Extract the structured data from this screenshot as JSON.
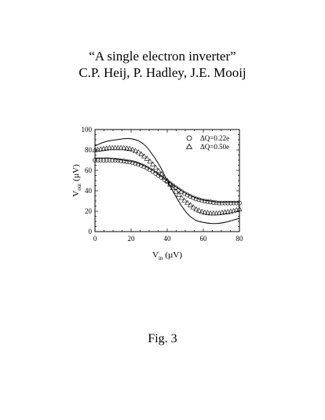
{
  "document": {
    "title": "“A single electron inverter”",
    "authors": "C.P. Heij, P. Hadley, J.E. Mooij",
    "figure_label": "Fig. 3"
  },
  "chart_data": {
    "type": "scatter",
    "xlabel_main": "V",
    "xlabel_sub": "in",
    "xlabel_unit": "(µV)",
    "ylabel_main": "V",
    "ylabel_sub": "out",
    "ylabel_unit": "(µV)",
    "xlim": [
      0,
      80
    ],
    "ylim": [
      0,
      100
    ],
    "xticks": [
      "0",
      "20",
      "40",
      "60",
      "80"
    ],
    "yticks": [
      "0",
      "20",
      "40",
      "60",
      "80",
      "100"
    ],
    "grid": false,
    "legend_position": "top-right",
    "series": [
      {
        "name": "ΔQ=0.22e",
        "marker": "circle",
        "x": [
          0,
          4,
          8,
          12,
          16,
          20,
          24,
          28,
          32,
          36,
          40,
          44,
          48,
          52,
          56,
          60,
          64,
          68,
          72,
          76,
          80
        ],
        "y": [
          70,
          70,
          70,
          70,
          69,
          68,
          66,
          63,
          59,
          54,
          49,
          44,
          39,
          35,
          32,
          30,
          29,
          28,
          28,
          28,
          28
        ],
        "fit_x": [
          0,
          4,
          8,
          12,
          16,
          20,
          24,
          28,
          32,
          36,
          40,
          44,
          48,
          52,
          56,
          60,
          64,
          68,
          72,
          76,
          80
        ],
        "fit_y": [
          72,
          72,
          72,
          71,
          70,
          69,
          67,
          64,
          60,
          55,
          50,
          45,
          40,
          36,
          33,
          31,
          30,
          29,
          29,
          29,
          29
        ]
      },
      {
        "name": "ΔQ=0.50e",
        "marker": "triangle",
        "x": [
          0,
          4,
          8,
          12,
          16,
          20,
          24,
          28,
          32,
          36,
          40,
          44,
          48,
          52,
          56,
          60,
          64,
          68,
          72,
          76,
          80
        ],
        "y": [
          80,
          81,
          82,
          82,
          82,
          81,
          78,
          73,
          66,
          58,
          50,
          41,
          33,
          27,
          22,
          19,
          18,
          18,
          19,
          20,
          22
        ],
        "fit_x": [
          0,
          4,
          8,
          12,
          16,
          20,
          24,
          28,
          32,
          36,
          40,
          44,
          48,
          52,
          56,
          60,
          64,
          68,
          72,
          76,
          80
        ],
        "fit_y": [
          84,
          87,
          89,
          90,
          91,
          91,
          89,
          84,
          75,
          64,
          50,
          37,
          25,
          16,
          11,
          9,
          8,
          8,
          9,
          11,
          13
        ]
      }
    ]
  }
}
